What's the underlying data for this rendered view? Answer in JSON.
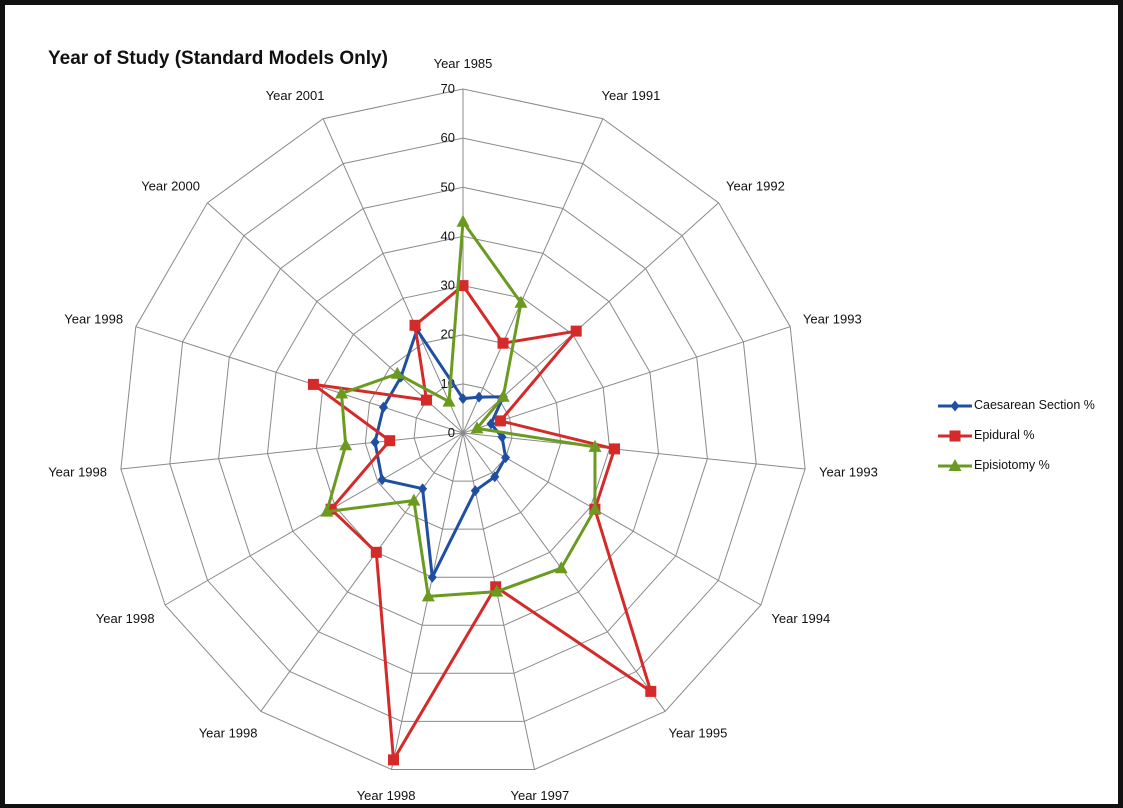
{
  "chart_data": {
    "type": "radar",
    "title": "Year of Study (Standard Models Only)",
    "categories": [
      "Year 1985",
      "Year 1991",
      "Year 1992",
      "Year 1993",
      "Year 1993",
      "Year 1994",
      "Year 1995",
      "Year 1997",
      "Year 1998",
      "Year 1998",
      "Year 1998",
      "Year 1998",
      "Year 1998",
      "Year 2000",
      "Year 2001"
    ],
    "r_ticks": [
      0,
      10,
      20,
      30,
      40,
      50,
      60,
      70
    ],
    "rlim": [
      0,
      70
    ],
    "grid": true,
    "legend_position": "right",
    "series": [
      {
        "name": "Caesarean Section %",
        "color": "#1f4fa0",
        "marker": "diamond",
        "values": [
          7,
          8,
          11,
          6,
          8,
          10,
          11,
          12,
          30,
          14,
          19,
          18,
          17,
          17,
          23
        ]
      },
      {
        "name": "Epidural %",
        "color": "#d42a2a",
        "marker": "square",
        "values": [
          30,
          20,
          31,
          8,
          31,
          31,
          65,
          32,
          68,
          30,
          31,
          15,
          32,
          10,
          24
        ]
      },
      {
        "name": "Episiotomy %",
        "color": "#6a9a1f",
        "marker": "triangle",
        "values": [
          43,
          29,
          11,
          3,
          27,
          31,
          34,
          33,
          34,
          17,
          32,
          24,
          26,
          18,
          7
        ]
      }
    ]
  }
}
